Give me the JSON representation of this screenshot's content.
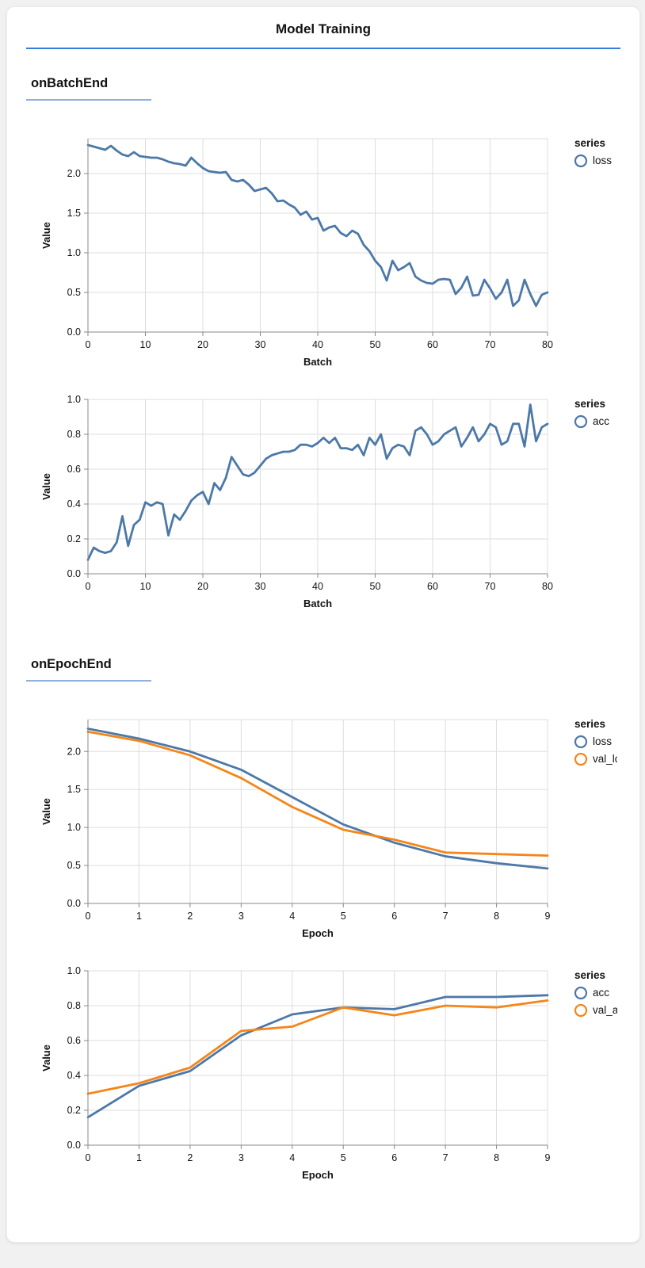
{
  "page": {
    "title": "Model Training"
  },
  "sections": [
    {
      "heading": "onBatchEnd"
    },
    {
      "heading": "onEpochEnd"
    }
  ],
  "colors": {
    "title_rule": "#357edd",
    "heading_rule": "#8fafdf",
    "series_blue": "#4c78a8",
    "series_orange": "#f58518",
    "grid": "#dddddd",
    "axis": "#888888"
  },
  "chart_data": [
    {
      "type": "line",
      "section": "onBatchEnd",
      "xlabel": "Batch",
      "ylabel": "Value",
      "xlim": [
        0,
        80
      ],
      "ylim": [
        0,
        2.44
      ],
      "grid": true,
      "legend_position": "right",
      "legend_title": "series",
      "xticks": [
        0,
        10,
        20,
        30,
        40,
        50,
        60,
        70,
        80
      ],
      "xtick_labels": [
        "0",
        "10",
        "20",
        "30",
        "40",
        "50",
        "60",
        "70",
        "80"
      ],
      "yticks": [
        0,
        0.5,
        1.0,
        1.5,
        2.0
      ],
      "ytick_labels": [
        "0.0",
        "0.5",
        "1.0",
        "1.5",
        "2.0"
      ],
      "series": [
        {
          "name": "loss",
          "color": "#4c78a8",
          "x_step": 1,
          "values": [
            2.36,
            2.34,
            2.32,
            2.3,
            2.35,
            2.29,
            2.24,
            2.22,
            2.27,
            2.22,
            2.21,
            2.2,
            2.2,
            2.18,
            2.15,
            2.13,
            2.12,
            2.1,
            2.2,
            2.13,
            2.07,
            2.03,
            2.02,
            2.01,
            2.02,
            1.92,
            1.9,
            1.92,
            1.86,
            1.78,
            1.8,
            1.82,
            1.75,
            1.65,
            1.66,
            1.61,
            1.57,
            1.48,
            1.52,
            1.42,
            1.44,
            1.28,
            1.32,
            1.34,
            1.25,
            1.21,
            1.28,
            1.24,
            1.1,
            1.02,
            0.9,
            0.82,
            0.65,
            0.9,
            0.78,
            0.82,
            0.87,
            0.7,
            0.65,
            0.62,
            0.61,
            0.66,
            0.67,
            0.66,
            0.48,
            0.56,
            0.7,
            0.46,
            0.47,
            0.66,
            0.55,
            0.42,
            0.5,
            0.66,
            0.33,
            0.4,
            0.66,
            0.48,
            0.33,
            0.47,
            0.5
          ]
        }
      ]
    },
    {
      "type": "line",
      "section": "onBatchEnd",
      "xlabel": "Batch",
      "ylabel": "Value",
      "xlim": [
        0,
        80
      ],
      "ylim": [
        0,
        1.0
      ],
      "grid": true,
      "legend_position": "right",
      "legend_title": "series",
      "xticks": [
        0,
        10,
        20,
        30,
        40,
        50,
        60,
        70,
        80
      ],
      "xtick_labels": [
        "0",
        "10",
        "20",
        "30",
        "40",
        "50",
        "60",
        "70",
        "80"
      ],
      "yticks": [
        0,
        0.2,
        0.4,
        0.6,
        0.8,
        1.0
      ],
      "ytick_labels": [
        "0.0",
        "0.2",
        "0.4",
        "0.6",
        "0.8",
        "1.0"
      ],
      "series": [
        {
          "name": "acc",
          "color": "#4c78a8",
          "x_step": 1,
          "values": [
            0.08,
            0.15,
            0.13,
            0.12,
            0.13,
            0.18,
            0.33,
            0.16,
            0.28,
            0.31,
            0.41,
            0.39,
            0.41,
            0.4,
            0.22,
            0.34,
            0.31,
            0.36,
            0.42,
            0.45,
            0.47,
            0.4,
            0.52,
            0.48,
            0.55,
            0.67,
            0.62,
            0.57,
            0.56,
            0.58,
            0.62,
            0.66,
            0.68,
            0.69,
            0.7,
            0.7,
            0.71,
            0.74,
            0.74,
            0.73,
            0.75,
            0.78,
            0.75,
            0.78,
            0.72,
            0.72,
            0.71,
            0.74,
            0.68,
            0.78,
            0.74,
            0.8,
            0.66,
            0.72,
            0.74,
            0.73,
            0.68,
            0.82,
            0.84,
            0.8,
            0.74,
            0.76,
            0.8,
            0.82,
            0.84,
            0.73,
            0.78,
            0.84,
            0.76,
            0.8,
            0.86,
            0.84,
            0.74,
            0.76,
            0.86,
            0.86,
            0.73,
            0.97,
            0.76,
            0.84,
            0.86
          ]
        }
      ]
    },
    {
      "type": "line",
      "section": "onEpochEnd",
      "xlabel": "Epoch",
      "ylabel": "Value",
      "xlim": [
        0,
        9
      ],
      "ylim": [
        0,
        2.42
      ],
      "grid": true,
      "legend_position": "right",
      "legend_title": "series",
      "xticks": [
        0,
        1,
        2,
        3,
        4,
        5,
        6,
        7,
        8,
        9
      ],
      "xtick_labels": [
        "0",
        "1",
        "2",
        "3",
        "4",
        "5",
        "6",
        "7",
        "8",
        "9"
      ],
      "yticks": [
        0,
        0.5,
        1.0,
        1.5,
        2.0
      ],
      "ytick_labels": [
        "0.0",
        "0.5",
        "1.0",
        "1.5",
        "2.0"
      ],
      "series": [
        {
          "name": "loss",
          "color": "#4c78a8",
          "x_step": 1,
          "values": [
            2.3,
            2.17,
            2.0,
            1.76,
            1.4,
            1.04,
            0.8,
            0.62,
            0.53,
            0.46
          ]
        },
        {
          "name": "val_loss",
          "color": "#f58518",
          "x_step": 1,
          "values": [
            2.26,
            2.14,
            1.95,
            1.65,
            1.27,
            0.97,
            0.84,
            0.67,
            0.65,
            0.63
          ]
        }
      ]
    },
    {
      "type": "line",
      "section": "onEpochEnd",
      "xlabel": "Epoch",
      "ylabel": "Value",
      "xlim": [
        0,
        9
      ],
      "ylim": [
        0,
        1.0
      ],
      "grid": true,
      "legend_position": "right",
      "legend_title": "series",
      "xticks": [
        0,
        1,
        2,
        3,
        4,
        5,
        6,
        7,
        8,
        9
      ],
      "xtick_labels": [
        "0",
        "1",
        "2",
        "3",
        "4",
        "5",
        "6",
        "7",
        "8",
        "9"
      ],
      "yticks": [
        0,
        0.2,
        0.4,
        0.6,
        0.8,
        1.0
      ],
      "ytick_labels": [
        "0.0",
        "0.2",
        "0.4",
        "0.6",
        "0.8",
        "1.0"
      ],
      "series": [
        {
          "name": "acc",
          "color": "#4c78a8",
          "x_step": 1,
          "values": [
            0.16,
            0.34,
            0.425,
            0.63,
            0.75,
            0.79,
            0.78,
            0.85,
            0.85,
            0.86
          ]
        },
        {
          "name": "val_acc",
          "color": "#f58518",
          "x_step": 1,
          "values": [
            0.295,
            0.355,
            0.445,
            0.655,
            0.68,
            0.79,
            0.745,
            0.8,
            0.79,
            0.83
          ]
        }
      ]
    }
  ]
}
